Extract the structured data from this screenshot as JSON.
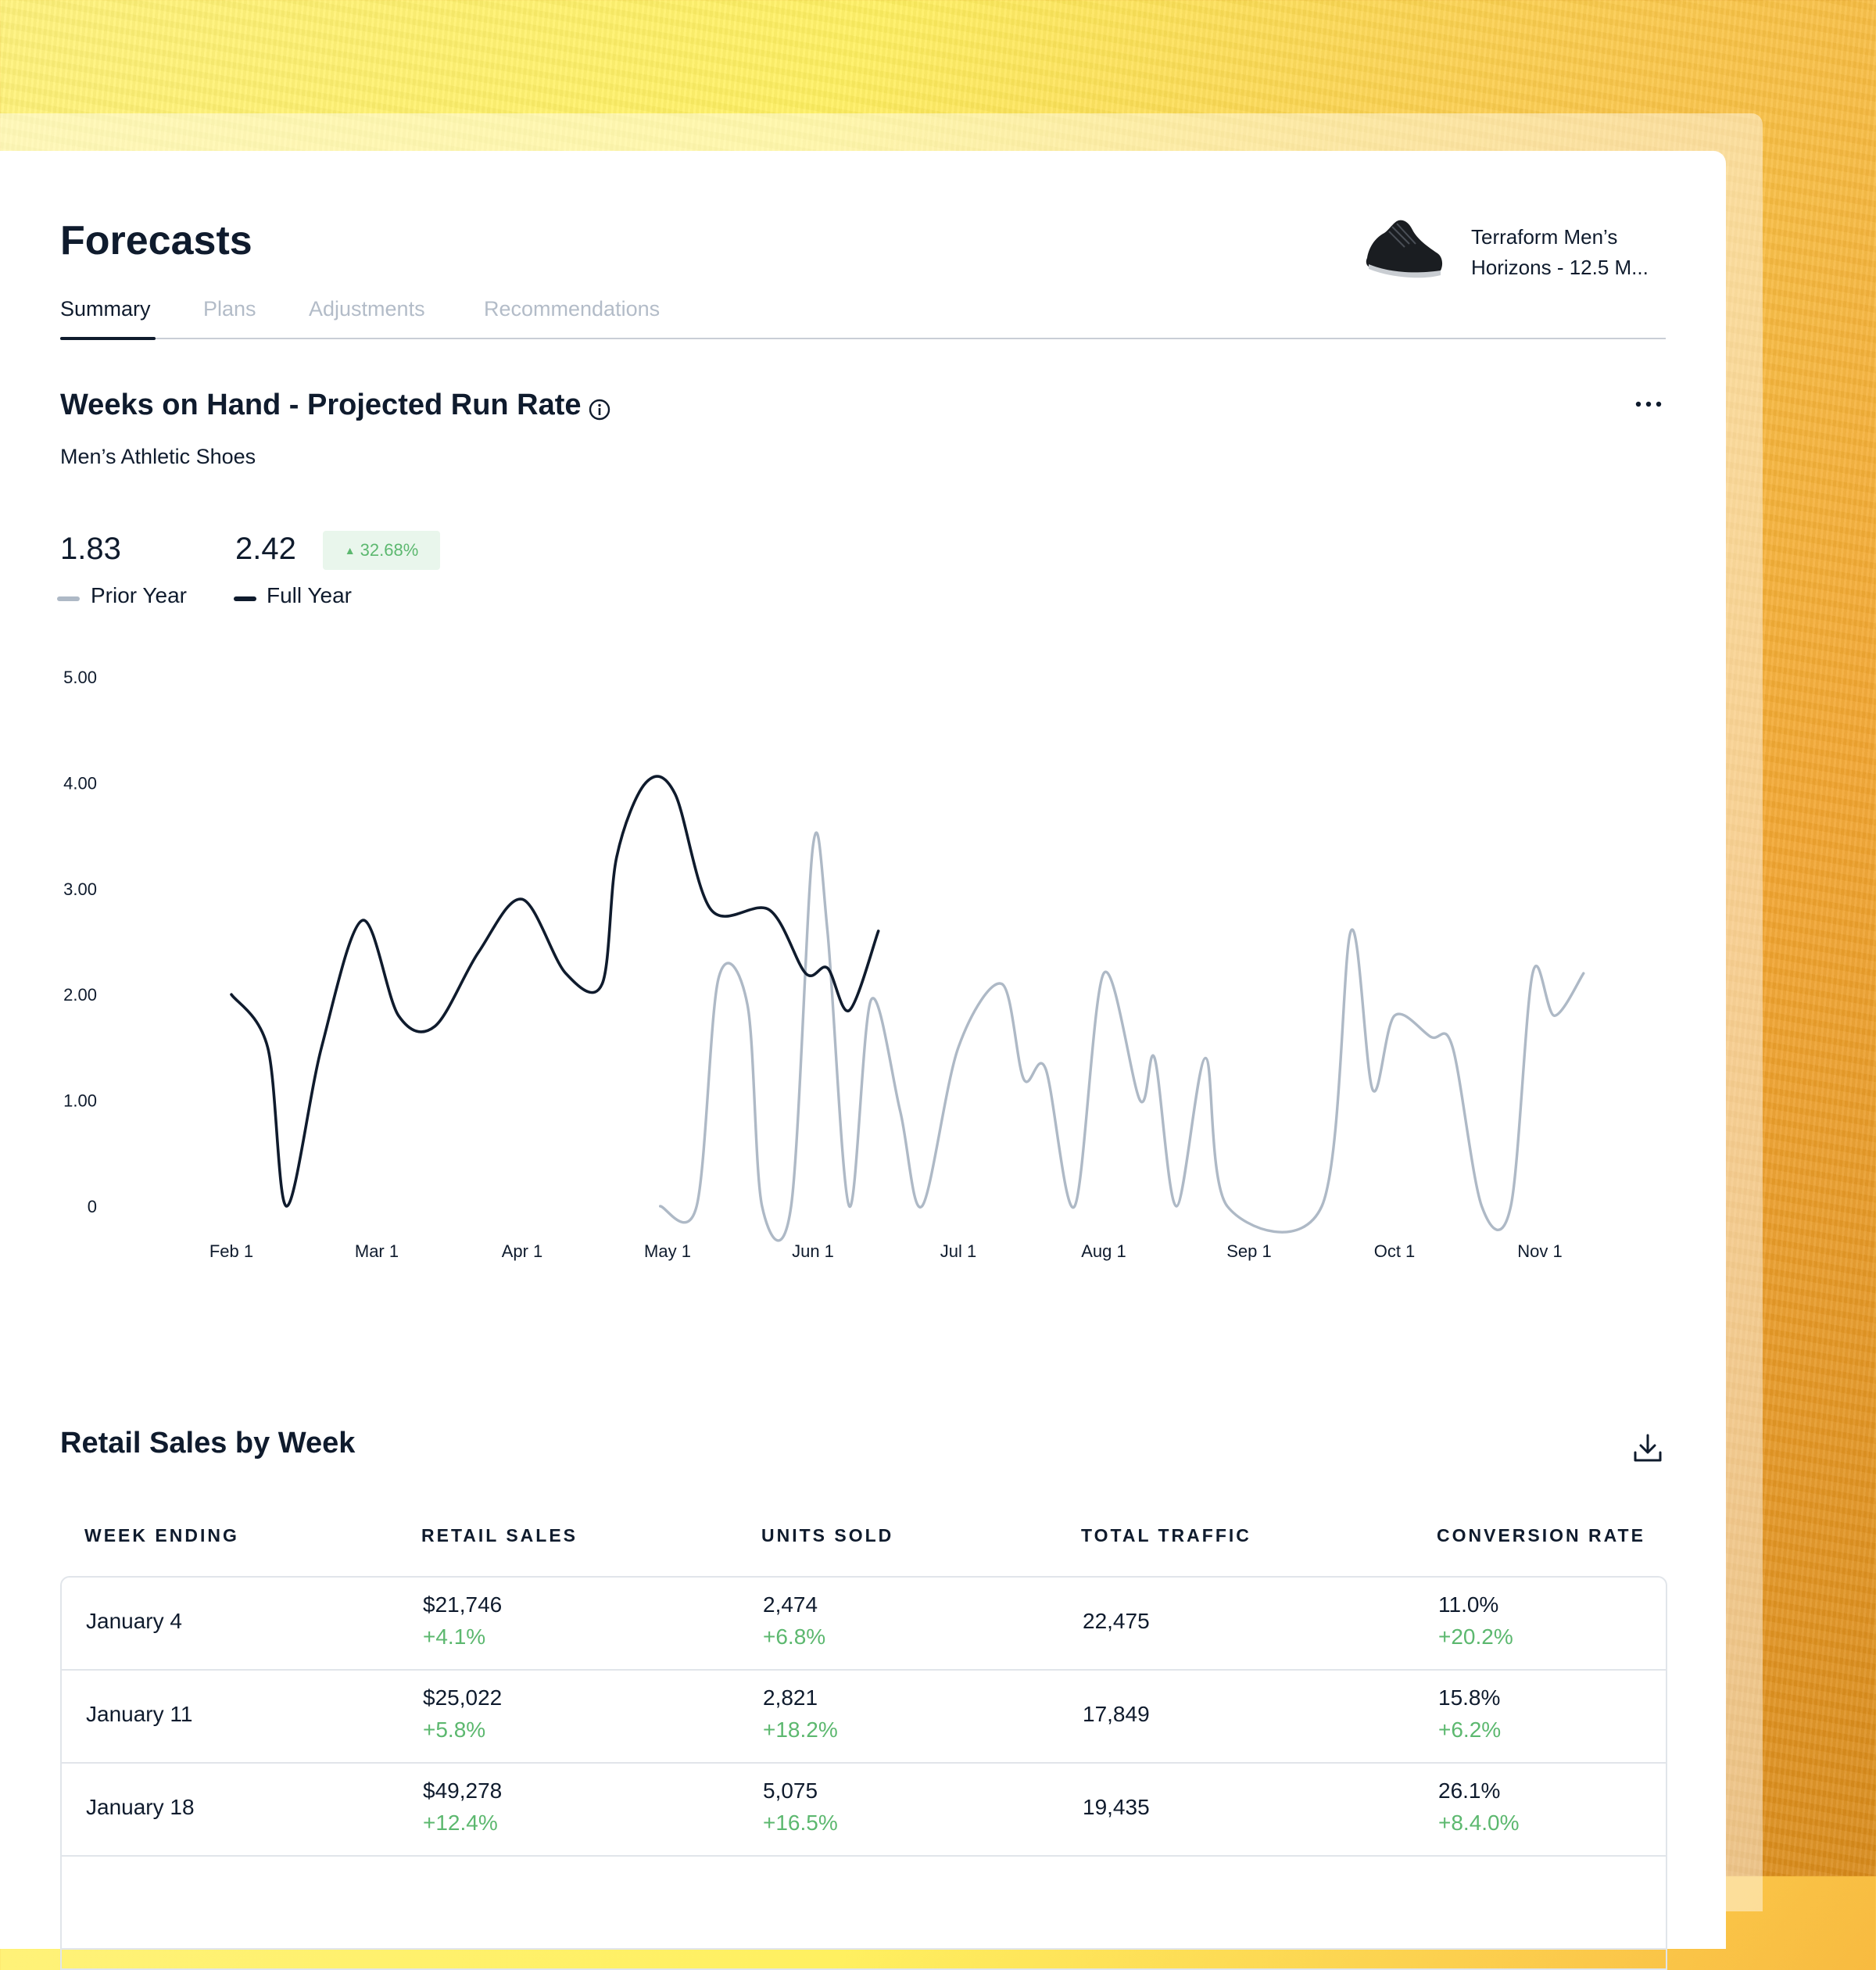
{
  "header": {
    "title": "Forecasts",
    "product_name_line1": "Terraform Men’s",
    "product_name_line2": "Horizons - 12.5 M..."
  },
  "tabs": [
    {
      "label": "Summary",
      "active": true
    },
    {
      "label": "Plans",
      "active": false
    },
    {
      "label": "Adjustments",
      "active": false
    },
    {
      "label": "Recommendations",
      "active": false
    }
  ],
  "weeks_on_hand": {
    "title": "Weeks on Hand - Projected Run Rate",
    "subtitle": "Men’s Athletic Shoes",
    "prior_year_value": "1.83",
    "full_year_value": "2.42",
    "change_badge": "32.68%",
    "legend_prior": "Prior Year",
    "legend_full": "Full Year"
  },
  "chart_data": {
    "type": "line",
    "y_ticks": [
      "5.00",
      "4.00",
      "3.00",
      "2.00",
      "1.00",
      "0"
    ],
    "x_ticks": [
      "Feb 1",
      "Mar 1",
      "Apr 1",
      "May 1",
      "Jun 1",
      "Jul 1",
      "Aug 1",
      "Sep 1",
      "Oct 1",
      "Nov 1"
    ],
    "ylim": [
      0,
      5
    ],
    "grid": false,
    "legend_placement": "top-left",
    "series": [
      {
        "name": "Full Year",
        "color": "#0f1b2d",
        "points": [
          [
            0.0,
            2.0
          ],
          [
            0.25,
            1.5
          ],
          [
            0.38,
            0.0
          ],
          [
            0.62,
            1.5
          ],
          [
            0.9,
            2.7
          ],
          [
            1.15,
            1.8
          ],
          [
            1.4,
            1.7
          ],
          [
            1.7,
            2.4
          ],
          [
            2.0,
            2.9
          ],
          [
            2.3,
            2.2
          ],
          [
            2.55,
            2.1
          ],
          [
            2.65,
            3.3
          ],
          [
            2.85,
            4.0
          ],
          [
            3.05,
            3.9
          ],
          [
            3.3,
            2.8
          ],
          [
            3.7,
            2.8
          ],
          [
            3.95,
            2.2
          ],
          [
            4.1,
            2.25
          ],
          [
            4.25,
            1.85
          ],
          [
            4.45,
            2.6
          ]
        ]
      },
      {
        "name": "Prior Year",
        "color": "#aeb9c6",
        "points": [
          [
            2.95,
            0.0
          ],
          [
            3.2,
            0.0
          ],
          [
            3.35,
            2.15
          ],
          [
            3.55,
            1.9
          ],
          [
            3.65,
            0.0
          ],
          [
            3.85,
            0.0
          ],
          [
            4.0,
            3.4
          ],
          [
            4.1,
            2.6
          ],
          [
            4.25,
            0.0
          ],
          [
            4.4,
            1.95
          ],
          [
            4.6,
            0.9
          ],
          [
            4.75,
            0.0
          ],
          [
            5.0,
            1.5
          ],
          [
            5.3,
            2.1
          ],
          [
            5.45,
            1.2
          ],
          [
            5.6,
            1.3
          ],
          [
            5.8,
            0.0
          ],
          [
            6.0,
            2.2
          ],
          [
            6.25,
            1.0
          ],
          [
            6.35,
            1.4
          ],
          [
            6.5,
            0.0
          ],
          [
            6.7,
            1.4
          ],
          [
            6.85,
            0.0
          ],
          [
            7.5,
            0.0
          ],
          [
            7.7,
            2.6
          ],
          [
            7.85,
            1.1
          ],
          [
            8.0,
            1.8
          ],
          [
            8.25,
            1.6
          ],
          [
            8.4,
            1.5
          ],
          [
            8.6,
            0.0
          ],
          [
            8.8,
            0.0
          ],
          [
            8.95,
            2.2
          ],
          [
            9.1,
            1.8
          ],
          [
            9.3,
            2.2
          ]
        ]
      }
    ]
  },
  "retail_sales": {
    "title": "Retail Sales by Week",
    "columns": [
      "WEEK ENDING",
      "RETAIL SALES",
      "UNITS SOLD",
      "TOTAL TRAFFIC",
      "CONVERSION RATE"
    ],
    "rows": [
      {
        "week": "January 4",
        "sales": "$21,746",
        "sales_change": "+4.1%",
        "units": "2,474",
        "units_change": "+6.8%",
        "traffic": "22,475",
        "conversion": "11.0%",
        "conversion_change": "+20.2%"
      },
      {
        "week": "January 11",
        "sales": "$25,022",
        "sales_change": "+5.8%",
        "units": "2,821",
        "units_change": "+18.2%",
        "traffic": "17,849",
        "conversion": "15.8%",
        "conversion_change": "+6.2%"
      },
      {
        "week": "January 18",
        "sales": "$49,278",
        "sales_change": "+12.4%",
        "units": "5,075",
        "units_change": "+16.5%",
        "traffic": "19,435",
        "conversion": "26.1%",
        "conversion_change": "+8.4.0%"
      }
    ]
  }
}
